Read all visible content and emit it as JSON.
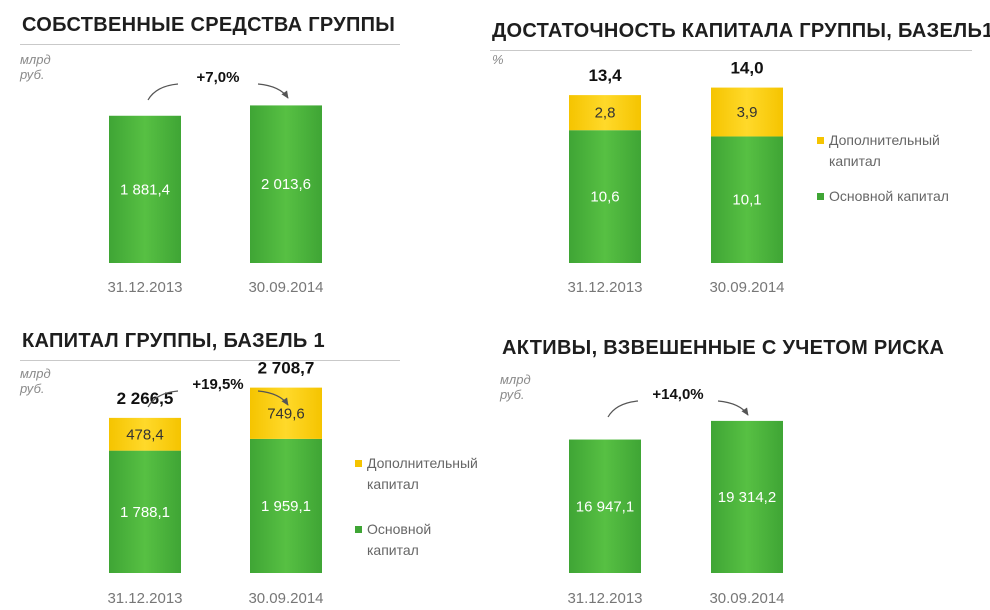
{
  "colors": {
    "green": "#3fa535",
    "green_light": "#57c043",
    "yellow": "#f5c400",
    "yellow_light": "#ffd92a"
  },
  "chart_data": [
    {
      "type": "bar",
      "title": "СОБСТВЕННЫЕ СРЕДСТВА ГРУППЫ",
      "unit": "млрд руб.",
      "categories": [
        "31.12.2013",
        "30.09.2014"
      ],
      "values": [
        1881.4,
        2013.6
      ],
      "value_labels": [
        "1 881,4",
        "2 013,6"
      ],
      "growth": "+7,0%",
      "ylim": [
        0,
        2300
      ]
    },
    {
      "type": "bar",
      "stacked": true,
      "title": "ДОСТАТОЧНОСТЬ КАПИТАЛА ГРУППЫ, БАЗЕЛЬ1",
      "unit": "%",
      "categories": [
        "31.12.2013",
        "30.09.2014"
      ],
      "series": [
        {
          "name": "Основной капитал",
          "values": [
            10.6,
            10.1
          ],
          "labels": [
            "10,6",
            "10,1"
          ]
        },
        {
          "name": "Дополнительный капитал",
          "values": [
            2.8,
            3.9
          ],
          "labels": [
            "2,8",
            "3,9"
          ]
        }
      ],
      "totals": [
        "13,4",
        "14,0"
      ],
      "legend": [
        "Дополнительный капитал",
        "Основной капитал"
      ],
      "ylim": [
        0,
        17
      ]
    },
    {
      "type": "bar",
      "stacked": true,
      "title": "КАПИТАЛ ГРУППЫ, БАЗЕЛЬ 1",
      "unit": "млрд руб.",
      "categories": [
        "31.12.2013",
        "30.09.2014"
      ],
      "series": [
        {
          "name": "Основной капитал",
          "values": [
            1788.1,
            1959.1
          ],
          "labels": [
            "1 788,1",
            "1 959,1"
          ]
        },
        {
          "name": "Дополнительный капитал",
          "values": [
            478.4,
            749.6
          ],
          "labels": [
            "478,4",
            "749,6"
          ]
        }
      ],
      "totals": [
        "2 266,5",
        "2 708,7"
      ],
      "growth": "+19,5%",
      "legend": [
        "Дополнительный капитал",
        "Основной капитал"
      ],
      "ylim": [
        0,
        3200
      ]
    },
    {
      "type": "bar",
      "title": "АКТИВЫ, ВЗВЕШЕННЫЕ С УЧЕТОМ РИСКА",
      "unit": "млрд руб.",
      "categories": [
        "31.12.2013",
        "30.09.2014"
      ],
      "values": [
        16947.1,
        19314.2
      ],
      "value_labels": [
        "16 947,1",
        "19 314,2"
      ],
      "growth": "+14,0%",
      "ylim": [
        0,
        24000
      ]
    }
  ]
}
